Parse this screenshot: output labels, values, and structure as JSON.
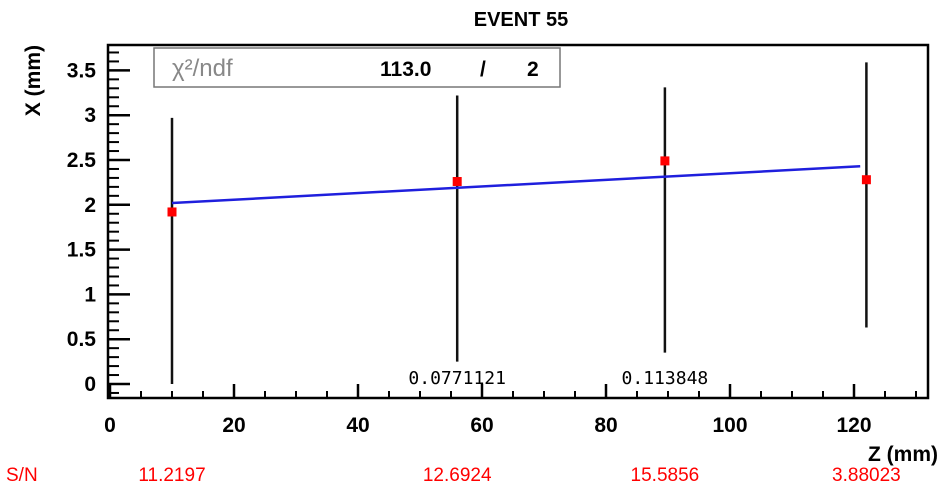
{
  "chart_data": {
    "type": "scatter",
    "title": "EVENT 55",
    "xlabel": "Z (mm)",
    "ylabel": "X (mm)",
    "xlim": [
      0,
      132
    ],
    "ylim": [
      -0.15,
      3.8
    ],
    "x_ticks": [
      0,
      20,
      40,
      60,
      80,
      100,
      120
    ],
    "y_ticks": [
      0,
      0.5,
      1,
      1.5,
      2,
      2.5,
      3,
      3.5
    ],
    "x_tick_labels": [
      "0",
      "20",
      "40",
      "60",
      "80",
      "100",
      "120"
    ],
    "y_tick_labels": [
      "0",
      "0.5",
      "1",
      "1.5",
      "2",
      "2.5",
      "3",
      "3.5"
    ],
    "grid": false,
    "points": [
      {
        "x": 10,
        "y": 1.92,
        "err_low": 0.0,
        "err_high": 2.97
      },
      {
        "x": 56,
        "y": 2.26,
        "err_low": 0.25,
        "err_high": 3.22
      },
      {
        "x": 89.5,
        "y": 2.49,
        "err_low": 0.35,
        "err_high": 3.31
      },
      {
        "x": 122,
        "y": 2.28,
        "err_low": 0.63,
        "err_high": 3.59
      }
    ],
    "fit_line": {
      "x": [
        10,
        121
      ],
      "y": [
        2.02,
        2.43
      ],
      "color": "#1f1fdd"
    },
    "point_color": "#ff0000",
    "stats_box": {
      "chi2_label": "χ²/ndf",
      "chi2_value": "113.0",
      "separator": "/",
      "ndf": "2"
    },
    "annotations": [
      {
        "text": "0.0771121",
        "x": 56,
        "y": 0.0
      },
      {
        "text": "0.113848",
        "x": 89.5,
        "y": 0.0
      }
    ],
    "sn_row": {
      "label": "S/N",
      "values": [
        "11.2197",
        "12.6924",
        "15.5856",
        "3.88023"
      ],
      "color": "#ff0000"
    }
  }
}
